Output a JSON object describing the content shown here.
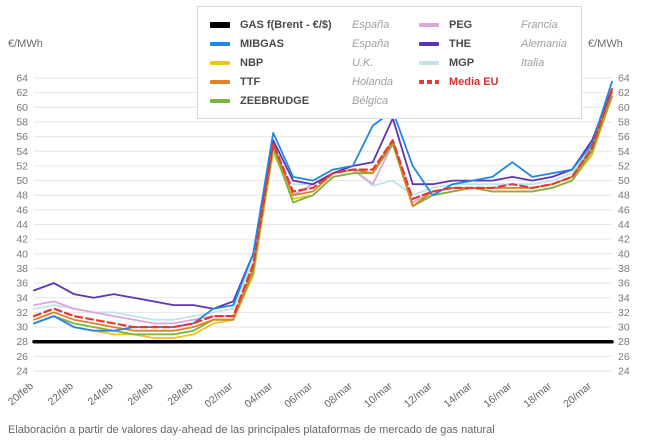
{
  "page": {
    "y_axis_unit_left": "€/MWh",
    "y_axis_unit_right": "€/MWh",
    "footer": "Elaboración a partir de valores day-ahead de las principales plataformas de mercado de gas natural"
  },
  "colors": {
    "grid": "#e6e6e6",
    "tick_text": "#787878",
    "x_text": "#666666"
  },
  "legend": {
    "items": [
      {
        "label": "GAS f(Brent - €/$)",
        "region": "España",
        "color": "#000000",
        "dashed": false
      },
      {
        "label": "MIBGAS",
        "region": "España",
        "color": "#1e88e5",
        "dashed": false
      },
      {
        "label": "NBP",
        "region": "U.K.",
        "color": "#eec31e",
        "dashed": false
      },
      {
        "label": "TTF",
        "region": "Holanda",
        "color": "#e08124",
        "dashed": false
      },
      {
        "label": "ZEEBRUDGE",
        "region": "Bélgica",
        "color": "#7cb342",
        "dashed": false
      },
      {
        "label": "PEG",
        "region": "Francia",
        "color": "#d9a7dc",
        "dashed": false
      },
      {
        "label": "THE",
        "region": "Alemania",
        "color": "#5e35b1",
        "dashed": false
      },
      {
        "label": "MGP",
        "region": "Italia",
        "color": "#c2e3ea",
        "dashed": false
      },
      {
        "label": "Media EU",
        "region": "",
        "color": "#e53935",
        "dashed": true
      }
    ]
  },
  "chart_data": {
    "type": "line",
    "title": "",
    "xlabel": "",
    "ylabel": "€/MWh",
    "ylim": [
      24,
      64
    ],
    "y_tick_step": 2,
    "x_tick_every": 2,
    "grid": true,
    "legend_position": "top",
    "x": [
      "20/feb",
      "21/feb",
      "22/feb",
      "23/feb",
      "24/feb",
      "25/feb",
      "26/feb",
      "27/feb",
      "28/feb",
      "01/mar",
      "02/mar",
      "03/mar",
      "04/mar",
      "05/mar",
      "06/mar",
      "07/mar",
      "08/mar",
      "09/mar",
      "10/mar",
      "11/mar",
      "12/mar",
      "13/mar",
      "14/mar",
      "15/mar",
      "16/mar",
      "17/mar",
      "18/mar",
      "19/mar",
      "20/mar",
      "21/mar"
    ],
    "series": [
      {
        "name": "GAS f(Brent - €/$)",
        "color": "#000000",
        "dashed": false,
        "width": 3.5,
        "values": [
          28,
          28,
          28,
          28,
          28,
          28,
          28,
          28,
          28,
          28,
          28,
          28,
          28,
          28,
          28,
          28,
          28,
          28,
          28,
          28,
          28,
          28,
          28,
          28,
          28,
          28,
          28,
          28,
          28,
          28
        ]
      },
      {
        "name": "MIBGAS",
        "color": "#1e88e5",
        "dashed": false,
        "width": 1.8,
        "values": [
          30.5,
          31.5,
          30,
          29.5,
          29.5,
          30,
          30,
          30,
          30.5,
          32.5,
          33,
          40,
          56.5,
          50.5,
          50,
          51.5,
          52,
          57.5,
          59.5,
          52,
          48,
          49.5,
          50,
          50.5,
          52.5,
          50.5,
          51,
          51.5,
          55,
          63.5
        ]
      },
      {
        "name": "NBP",
        "color": "#eec31e",
        "dashed": false,
        "width": 1.8,
        "values": [
          30.5,
          31.5,
          30,
          29.5,
          29,
          29,
          28.5,
          28.5,
          29,
          30.5,
          31,
          37,
          54,
          47.5,
          48,
          50.5,
          51,
          51,
          55,
          46.5,
          48,
          48.5,
          49,
          48.5,
          48.5,
          48.5,
          49,
          50,
          53.5,
          61.5
        ]
      },
      {
        "name": "TTF",
        "color": "#e08124",
        "dashed": false,
        "width": 1.8,
        "values": [
          31,
          32,
          31,
          30.5,
          30,
          29.5,
          29.5,
          29.5,
          30,
          31,
          31,
          38,
          55,
          48,
          48.5,
          51,
          51.5,
          51,
          55.5,
          46.5,
          48.5,
          49,
          49,
          49,
          49,
          49,
          49.5,
          50.5,
          54.5,
          62
        ]
      },
      {
        "name": "ZEEBRUDGE",
        "color": "#7cb342",
        "dashed": false,
        "width": 1.8,
        "values": [
          30.5,
          31.5,
          30.5,
          30,
          29.5,
          29,
          29,
          29,
          29.5,
          31,
          31,
          37.5,
          54.5,
          47,
          48,
          50.5,
          51,
          51,
          55,
          46.5,
          48,
          48.5,
          49,
          48.5,
          48.5,
          48.5,
          49,
          50,
          54,
          61.5
        ]
      },
      {
        "name": "PEG",
        "color": "#d9a7dc",
        "dashed": false,
        "width": 1.8,
        "values": [
          33,
          33.5,
          32.5,
          32,
          31.5,
          31,
          30.5,
          30.5,
          31,
          31.5,
          31.5,
          38,
          54.5,
          48,
          49.5,
          51,
          51.5,
          49.5,
          55,
          47,
          48.5,
          49,
          49,
          49,
          49,
          49,
          49.5,
          50.5,
          54,
          61.5
        ]
      },
      {
        "name": "THE",
        "color": "#5e35b1",
        "dashed": false,
        "width": 1.8,
        "values": [
          35,
          36,
          34.5,
          34,
          34.5,
          34,
          33.5,
          33,
          33,
          32.5,
          33.5,
          40,
          55.5,
          50,
          49.5,
          51,
          52,
          52.5,
          58.5,
          49.5,
          49.5,
          50,
          50,
          50,
          50.5,
          50,
          50.5,
          51.5,
          55.5,
          62.5
        ]
      },
      {
        "name": "MGP",
        "color": "#c2e3ea",
        "dashed": false,
        "width": 1.8,
        "values": [
          32.5,
          33,
          32.5,
          32,
          32,
          31.5,
          31,
          31,
          31.5,
          32,
          32.5,
          39,
          53.5,
          49.5,
          49.5,
          51,
          51.5,
          49.3,
          50,
          48,
          49,
          49.5,
          49.5,
          49.5,
          49.5,
          49.5,
          50,
          51,
          55,
          62
        ]
      },
      {
        "name": "Media EU",
        "color": "#e53935",
        "dashed": true,
        "width": 2.2,
        "values": [
          31.5,
          32.5,
          31.5,
          31,
          30.5,
          30,
          30,
          30,
          30.5,
          31.5,
          31.5,
          38.5,
          55,
          48.5,
          49,
          51,
          51.5,
          51.5,
          55.5,
          47.5,
          48.5,
          49,
          49,
          49,
          49.5,
          49,
          49.5,
          50.5,
          54.5,
          62.5
        ]
      }
    ]
  }
}
